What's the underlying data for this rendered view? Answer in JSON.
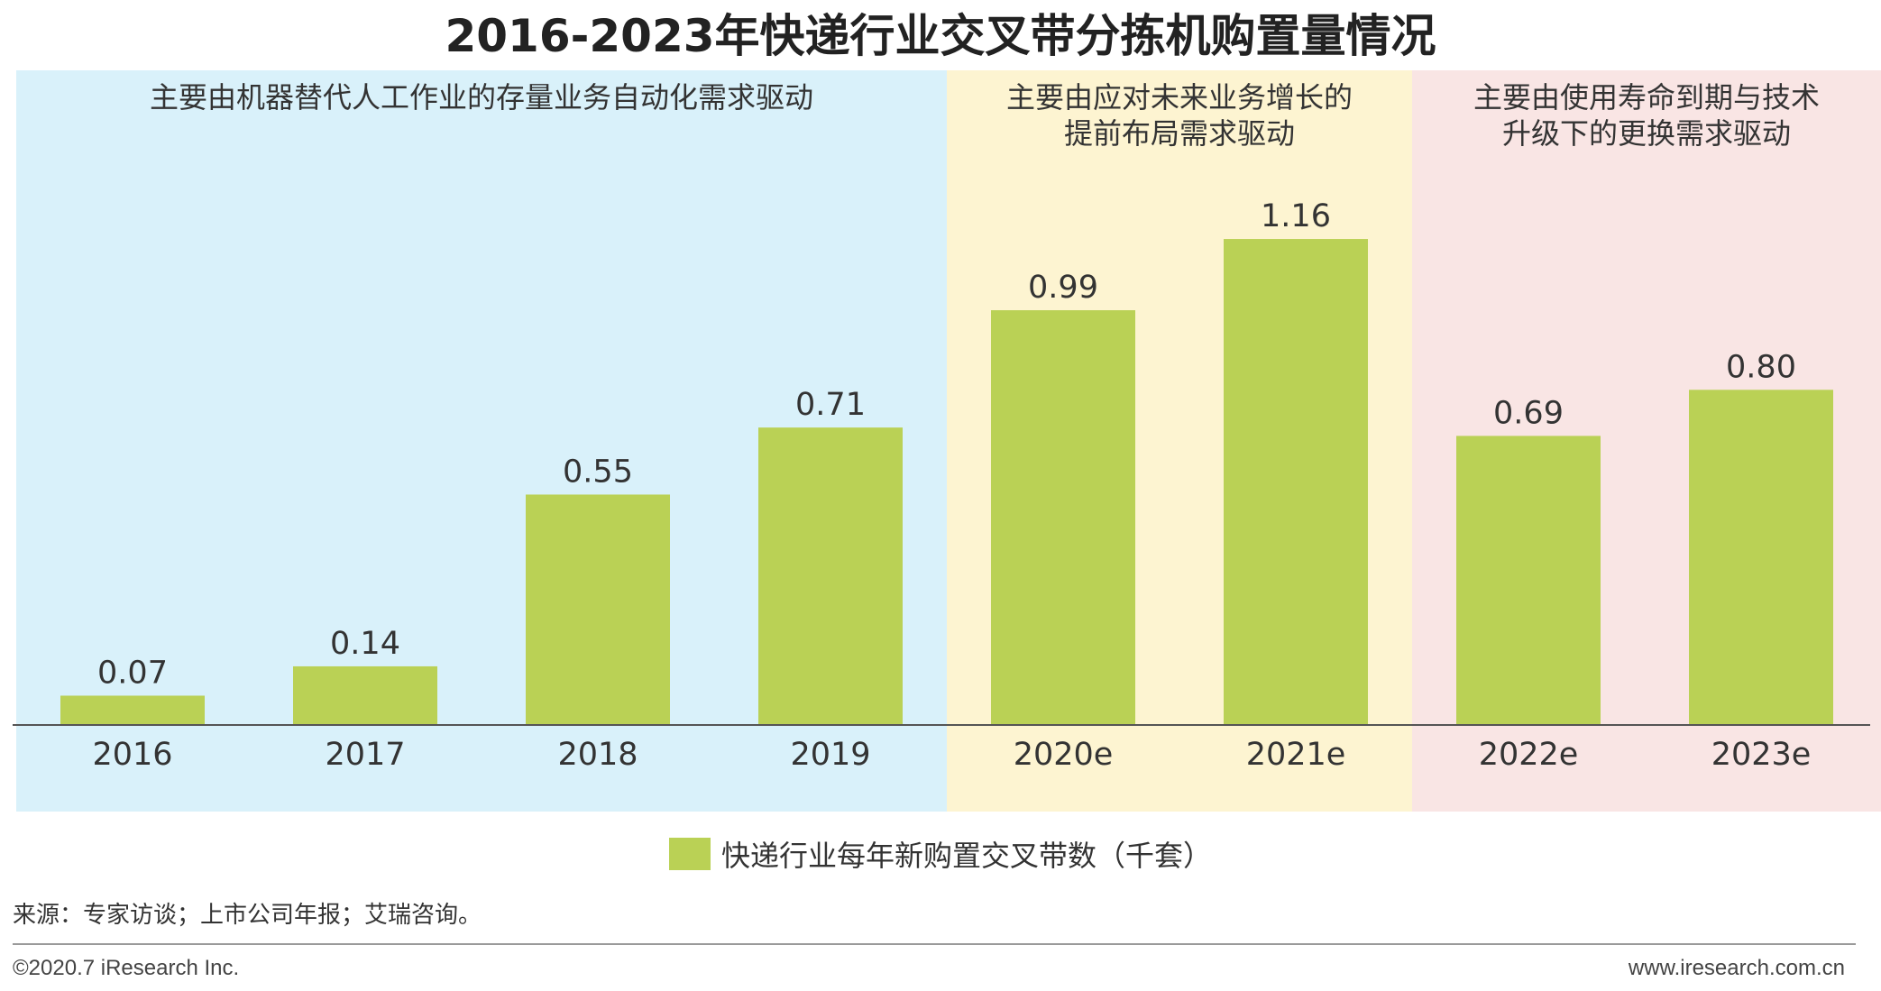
{
  "title": "2016-2023年快递行业交叉带分拣机购置量情况",
  "bands": [
    {
      "label": "主要由机器替代人工作业的存量业务自动化需求驱动",
      "color": "#d9f1fa"
    },
    {
      "label": "主要由应对未来业务增长的\n提前布局需求驱动",
      "color": "#fdf4d1"
    },
    {
      "label": "主要由使用寿命到期与技术\n升级下的更换需求驱动",
      "color": "#f9e5e4"
    }
  ],
  "chart_data": {
    "type": "bar",
    "title": "2016-2023年快递行业交叉带分拣机购置量情况",
    "categories": [
      "2016",
      "2017",
      "2018",
      "2019",
      "2020e",
      "2021e",
      "2022e",
      "2023e"
    ],
    "series": [
      {
        "name": "快递行业每年新购置交叉带数（千套）",
        "values": [
          0.07,
          0.14,
          0.55,
          0.71,
          0.99,
          1.16,
          0.69,
          0.8
        ],
        "labels": [
          "0.07",
          "0.14",
          "0.55",
          "0.71",
          "0.99",
          "1.16",
          "0.69",
          "0.80"
        ],
        "color": "#bad155"
      }
    ],
    "ylim": [
      0,
      1.3
    ],
    "grid": false,
    "legend_position": "bottom"
  },
  "legend": {
    "label": "快递行业每年新购置交叉带数（千套）",
    "color": "#bad155"
  },
  "source": "来源：专家访谈；上市公司年报；艾瑞咨询。",
  "footer": {
    "left": "©2020.7 iResearch Inc.",
    "right": "www.iresearch.com.cn"
  },
  "colors": {
    "axis": "#555555",
    "text": "#333333"
  }
}
